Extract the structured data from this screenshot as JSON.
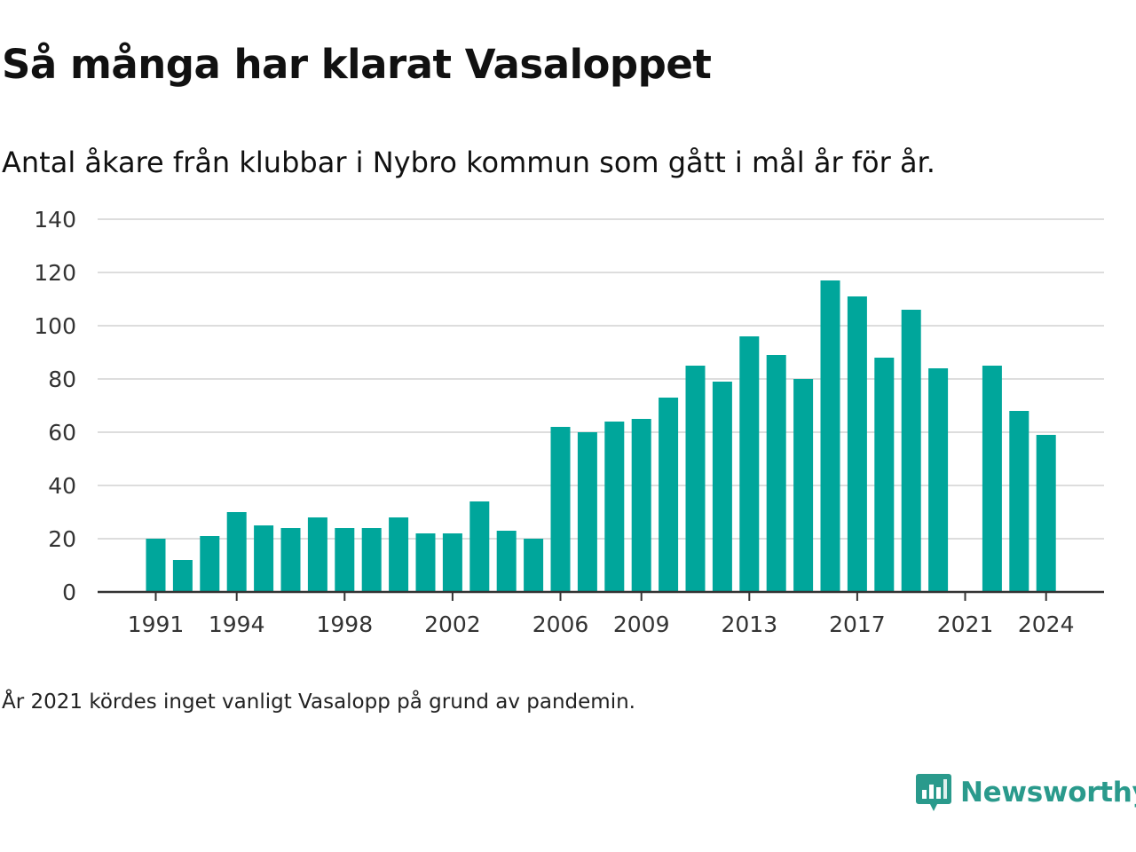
{
  "title": "Så många har klarat Vasaloppet",
  "subtitle": "Antal åkare från klubbar i Nybro kommun som gått i mål år för år.",
  "note": "År 2021 kördes inget vanligt Vasalopp på grund av pandemin.",
  "brand": {
    "name": "Newsworthy",
    "icon": "newsworthy-logo-icon",
    "color": "#2a9a8c"
  },
  "colors": {
    "bar": "#00a69b",
    "grid": "#dddddd",
    "axis": "#333333"
  },
  "chart_data": {
    "type": "bar",
    "title": "Så många har klarat Vasaloppet",
    "subtitle": "Antal åkare från klubbar i Nybro kommun som gått i mål år för år.",
    "xlabel": "",
    "ylabel": "",
    "ylim": [
      0,
      140
    ],
    "yticks": [
      0,
      20,
      40,
      60,
      80,
      100,
      120,
      140
    ],
    "xtick_labels": [
      "1991",
      "1994",
      "1998",
      "2002",
      "2006",
      "2009",
      "2013",
      "2017",
      "2021",
      "2024"
    ],
    "grid": true,
    "legend": "none",
    "categories": [
      1991,
      1992,
      1993,
      1994,
      1995,
      1996,
      1997,
      1998,
      1999,
      2000,
      2001,
      2002,
      2003,
      2004,
      2005,
      2006,
      2007,
      2008,
      2009,
      2010,
      2011,
      2012,
      2013,
      2014,
      2015,
      2016,
      2017,
      2018,
      2019,
      2020,
      2021,
      2022,
      2023,
      2024
    ],
    "values": [
      20,
      12,
      21,
      30,
      25,
      24,
      28,
      24,
      24,
      28,
      22,
      22,
      34,
      23,
      20,
      62,
      60,
      64,
      65,
      73,
      85,
      79,
      96,
      89,
      80,
      117,
      111,
      88,
      106,
      84,
      0,
      85,
      68,
      59
    ]
  }
}
